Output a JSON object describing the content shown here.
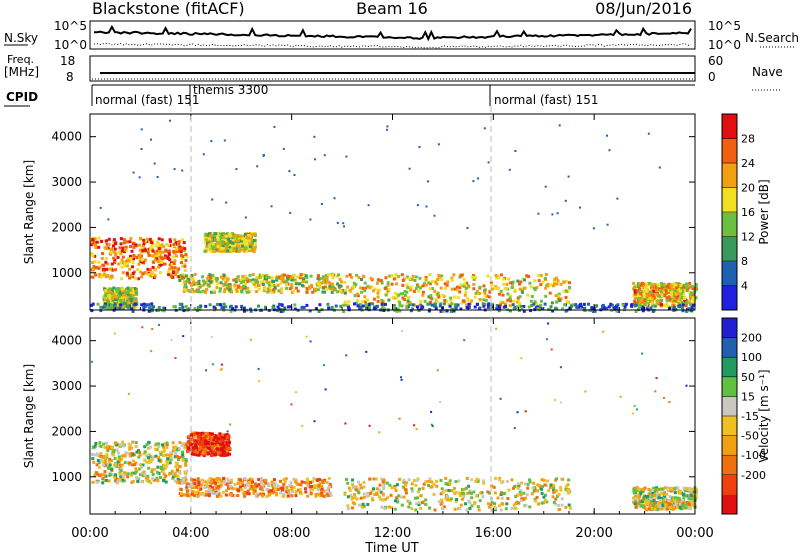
{
  "header": {
    "station": "Blackstone (fitACF)",
    "beam": "Beam 16",
    "date": "08/Jun/2016"
  },
  "summary": {
    "nsky_label": "N.Sky",
    "nsky_ticks": [
      "10^5",
      "10^0"
    ],
    "nsearch_label": "N.Search",
    "nsearch_ticks": [
      "10^5",
      "10^0"
    ],
    "freq_label_1": "Freq.",
    "freq_label_2": "[MHz]",
    "freq_ticks": [
      "18",
      "8"
    ],
    "nave_label": "Nave",
    "nave_ticks": [
      "60",
      "0"
    ],
    "cpid_label": "CPID",
    "cpid_segments": [
      "normal (fast) 151",
      "themis 3300",
      "normal (fast) 151"
    ]
  },
  "colors": {
    "power": [
      "#2020e0",
      "#2060b0",
      "#3a9a5a",
      "#6cc040",
      "#f0e020",
      "#f0a010",
      "#f06010",
      "#e01010"
    ],
    "velocity": [
      "#e01010",
      "#f04010",
      "#f07010",
      "#f0a010",
      "#f0c020",
      "#c8c8c0",
      "#60c040",
      "#209a60",
      "#2060b0",
      "#2020d0"
    ]
  },
  "chart_data": [
    {
      "type": "heatmap",
      "name": "Power",
      "ylabel": "Slant Range [km]",
      "xlabel": "Time UT",
      "x_ticks": [
        "00:00",
        "04:00",
        "08:00",
        "12:00",
        "16:00",
        "20:00",
        "00:00"
      ],
      "xlim_hours": [
        0,
        24
      ],
      "y_ticks": [
        "1000",
        "2000",
        "3000",
        "4000"
      ],
      "ylim": [
        180,
        4500
      ],
      "colorbar_label": "Power [dB]",
      "colorbar_ticks": [
        "4",
        "8",
        "12",
        "16",
        "20",
        "24",
        "28"
      ],
      "colorbar_range": [
        0,
        32
      ],
      "scatter_regions": [
        {
          "t": [
            0.0,
            3.8
          ],
          "r": [
            900,
            1800
          ],
          "level": 0.75
        },
        {
          "t": [
            0.5,
            1.8
          ],
          "r": [
            250,
            700
          ],
          "level": 0.5
        },
        {
          "t": [
            3.5,
            10.0
          ],
          "r": [
            600,
            1000
          ],
          "level": 0.55
        },
        {
          "t": [
            4.5,
            6.5
          ],
          "r": [
            1500,
            1900
          ],
          "level": 0.5
        },
        {
          "t": [
            10.0,
            19.0
          ],
          "r": [
            300,
            1000
          ],
          "level": 0.6
        },
        {
          "t": [
            21.5,
            24.0
          ],
          "r": [
            300,
            800
          ],
          "level": 0.65
        },
        {
          "t": [
            0.0,
            24.0
          ],
          "r": [
            180,
            350
          ],
          "level": 0.2
        }
      ]
    },
    {
      "type": "heatmap",
      "name": "Velocity",
      "ylabel": "Slant Range [km]",
      "xlabel": "Time UT",
      "x_ticks": [
        "00:00",
        "04:00",
        "08:00",
        "12:00",
        "16:00",
        "20:00",
        "00:00"
      ],
      "xlim_hours": [
        0,
        24
      ],
      "y_ticks": [
        "1000",
        "2000",
        "3000",
        "4000"
      ],
      "ylim": [
        180,
        4500
      ],
      "colorbar_label": "Velocity [m s⁻¹]",
      "colorbar_ticks": [
        "200",
        "100",
        "50",
        "15",
        "-15",
        "-50",
        "-100",
        "-200"
      ],
      "scatter_regions": [
        {
          "t": [
            0.0,
            3.8
          ],
          "r": [
            900,
            1800
          ],
          "level": 0.5
        },
        {
          "t": [
            3.8,
            5.5
          ],
          "r": [
            1500,
            2000
          ],
          "level": 0.1
        },
        {
          "t": [
            3.5,
            9.5
          ],
          "r": [
            600,
            1000
          ],
          "level": 0.35
        },
        {
          "t": [
            10.0,
            19.0
          ],
          "r": [
            300,
            1000
          ],
          "level": 0.5
        },
        {
          "t": [
            21.5,
            24.0
          ],
          "r": [
            300,
            800
          ],
          "level": 0.5
        }
      ]
    }
  ]
}
